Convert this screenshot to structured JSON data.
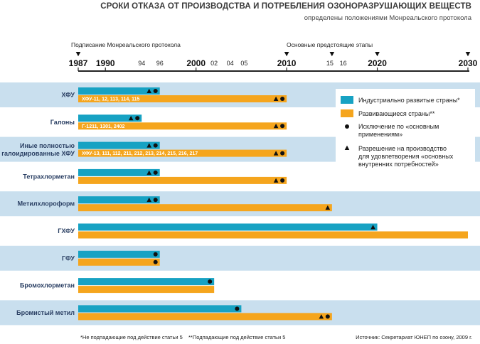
{
  "title": "СРОКИ ОТКАЗА ОТ ПРОИЗВОДСТВА И ПОТРЕБЛЕНИЯ ОЗОНОРАЗРУШАЮЩИХ ВЕЩЕСТВ",
  "subtitle": "определены положениями Монреальского протокола",
  "colors": {
    "developed": "#17a2c3",
    "developing": "#f5a51d",
    "row_band": "#c9dfee",
    "axis": "#222222",
    "category_text": "#2a3f63",
    "marker": "#111111"
  },
  "timeline_events": [
    {
      "label": "Подписание Монреальского протокола",
      "year": 1987
    },
    {
      "label": "Основные предстоящие этапы",
      "years": [
        2010,
        2015,
        2020,
        2030
      ]
    }
  ],
  "footnotes": {
    "left1": "*Не подпадающие под действие статьи 5",
    "left2": "**Подпадающие под действие статьи 5",
    "source": "Источник: Секретариат ЮНЕП по озону, 2009 г."
  },
  "chart_data": {
    "type": "bar",
    "orientation": "horizontal",
    "start_year": 1987,
    "xlim": [
      1987,
      2030
    ],
    "x_ticks_major": [
      1987,
      1990,
      2000,
      2010,
      2020,
      2030
    ],
    "x_ticks_minor": [
      1994,
      1996,
      2002,
      2004,
      2005,
      2015,
      2016
    ],
    "legend": {
      "placement": "right",
      "entries": [
        {
          "kind": "bar",
          "series": "developed",
          "label": "Индустриально развитые страны*"
        },
        {
          "kind": "bar",
          "series": "developing",
          "label": "Развивающиеся страны**"
        },
        {
          "kind": "circle",
          "label": "Исключение по «основным применениям»"
        },
        {
          "kind": "triangle",
          "label": "Разрешение на производство для удовлетворения «основных внутренних потребностей»"
        }
      ]
    },
    "categories": [
      {
        "name": "ХФУ",
        "band": true,
        "developed": {
          "end": 1996,
          "markers": [
            "triangle",
            "circle"
          ]
        },
        "developing": {
          "end": 2010,
          "label": "ХФУ-11, 12, 113, 114, 115",
          "markers": [
            "triangle",
            "circle"
          ]
        }
      },
      {
        "name": "Галоны",
        "band": false,
        "developed": {
          "end": 1994,
          "markers": [
            "triangle",
            "circle"
          ]
        },
        "developing": {
          "end": 2010,
          "label": "Г-1211, 1301, 2402",
          "markers": [
            "triangle",
            "circle"
          ]
        }
      },
      {
        "name": "Иные полностью галоидированные ХФУ",
        "band": true,
        "developed": {
          "end": 1996,
          "markers": [
            "triangle",
            "circle"
          ]
        },
        "developing": {
          "end": 2010,
          "label": "ХФУ-13, 111, 112, 211, 212, 213, 214, 215, 216, 217",
          "markers": [
            "triangle",
            "circle"
          ]
        }
      },
      {
        "name": "Тетрахлорметан",
        "band": false,
        "developed": {
          "end": 1996,
          "markers": [
            "triangle",
            "circle"
          ]
        },
        "developing": {
          "end": 2010,
          "markers": [
            "triangle",
            "circle"
          ]
        }
      },
      {
        "name": "Метилхлороформ",
        "band": true,
        "developed": {
          "end": 1996,
          "markers": [
            "triangle",
            "circle"
          ]
        },
        "developing": {
          "end": 2015,
          "markers": [
            "triangle"
          ]
        }
      },
      {
        "name": "ГХФУ",
        "band": false,
        "developed": {
          "end": 2020,
          "markers": [
            "triangle"
          ]
        },
        "developing": {
          "end": 2030,
          "markers": []
        }
      },
      {
        "name": "ГФУ",
        "band": true,
        "developed": {
          "end": 1996,
          "markers": [
            "circle"
          ]
        },
        "developing": {
          "end": 1996,
          "markers": [
            "circle"
          ]
        }
      },
      {
        "name": "Бромохлорметан",
        "band": false,
        "developed": {
          "end": 2002,
          "markers": [
            "circle"
          ]
        },
        "developing": {
          "end": 2002,
          "markers": []
        }
      },
      {
        "name": "Бромистый метил",
        "band": true,
        "developed": {
          "end": 2005,
          "markers": [
            "circle"
          ]
        },
        "developing": {
          "end": 2015,
          "markers": [
            "triangle",
            "circle"
          ]
        }
      }
    ]
  }
}
